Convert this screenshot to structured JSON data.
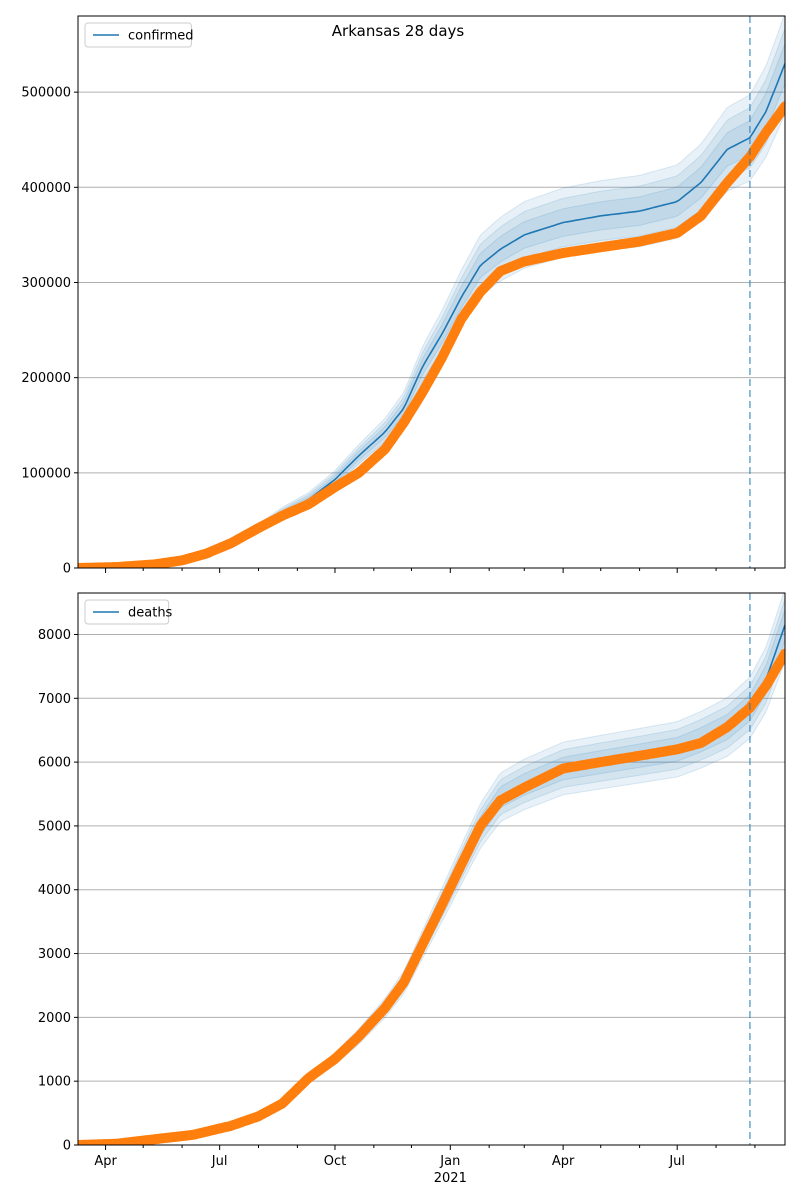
{
  "figure_title": "Arkansas 28 days",
  "colors": {
    "model": "#1f77b4",
    "observed": "#ff7f0e",
    "grid": "#b0b0b0",
    "vline": "#1f77b4"
  },
  "chart_data": [
    {
      "type": "line",
      "title": "Arkansas 28 days",
      "legend": {
        "label": "confirmed",
        "placement": "top-left"
      },
      "x_axis": {
        "type": "date",
        "range": [
          "2020-03-10",
          "2021-09-25"
        ],
        "tick_labels": []
      },
      "ylim": [
        0,
        580000
      ],
      "yticks": [
        0,
        100000,
        200000,
        300000,
        400000,
        500000
      ],
      "grid": "horizontal",
      "forecast_start": "2021-08-28",
      "series": [
        {
          "name": "confirmed",
          "style": "line-with-uncertainty-bands",
          "points": [
            [
              "2020-03-10",
              0
            ],
            [
              "2020-04-10",
              1200
            ],
            [
              "2020-05-10",
              4000
            ],
            [
              "2020-06-01",
              8000
            ],
            [
              "2020-06-20",
              15000
            ],
            [
              "2020-07-10",
              26000
            ],
            [
              "2020-08-01",
              42000
            ],
            [
              "2020-08-20",
              58000
            ],
            [
              "2020-09-10",
              72000
            ],
            [
              "2020-10-01",
              93000
            ],
            [
              "2020-10-20",
              118000
            ],
            [
              "2020-11-10",
              143000
            ],
            [
              "2020-11-25",
              168000
            ],
            [
              "2020-12-10",
              212000
            ],
            [
              "2020-12-25",
              245000
            ],
            [
              "2021-01-10",
              285000
            ],
            [
              "2021-01-25",
              318000
            ],
            [
              "2021-02-10",
              335000
            ],
            [
              "2021-03-01",
              350000
            ],
            [
              "2021-04-01",
              363000
            ],
            [
              "2021-05-01",
              370000
            ],
            [
              "2021-06-01",
              375000
            ],
            [
              "2021-07-01",
              385000
            ],
            [
              "2021-07-20",
              405000
            ],
            [
              "2021-08-10",
              440000
            ],
            [
              "2021-08-28",
              452000
            ],
            [
              "2021-09-10",
              480000
            ],
            [
              "2021-09-25",
              530000
            ]
          ],
          "band_spread_fraction": [
            0.1,
            0.07,
            0.04
          ]
        },
        {
          "name": "",
          "style": "markers",
          "points": [
            [
              "2020-03-10",
              0
            ],
            [
              "2020-04-10",
              1000
            ],
            [
              "2020-05-10",
              3800
            ],
            [
              "2020-06-01",
              8000
            ],
            [
              "2020-06-20",
              15000
            ],
            [
              "2020-07-10",
              26000
            ],
            [
              "2020-08-01",
              42000
            ],
            [
              "2020-08-20",
              55000
            ],
            [
              "2020-09-10",
              67000
            ],
            [
              "2020-10-01",
              85000
            ],
            [
              "2020-10-20",
              100000
            ],
            [
              "2020-11-10",
              125000
            ],
            [
              "2020-11-25",
              153000
            ],
            [
              "2020-12-10",
              185000
            ],
            [
              "2020-12-25",
              220000
            ],
            [
              "2021-01-10",
              262000
            ],
            [
              "2021-01-25",
              290000
            ],
            [
              "2021-02-10",
              312000
            ],
            [
              "2021-03-01",
              322000
            ],
            [
              "2021-04-01",
              331000
            ],
            [
              "2021-05-01",
              337000
            ],
            [
              "2021-06-01",
              343000
            ],
            [
              "2021-07-01",
              352000
            ],
            [
              "2021-07-20",
              370000
            ],
            [
              "2021-08-10",
              405000
            ],
            [
              "2021-08-28",
              432000
            ],
            [
              "2021-09-10",
              458000
            ],
            [
              "2021-09-25",
              485000
            ]
          ]
        }
      ]
    },
    {
      "type": "line",
      "title": "",
      "legend": {
        "label": "deaths",
        "placement": "top-left"
      },
      "x_axis": {
        "type": "date",
        "range": [
          "2020-03-10",
          "2021-09-25"
        ],
        "tick_labels": [
          {
            "date": "2020-04-01",
            "label": "Apr"
          },
          {
            "date": "2020-07-01",
            "label": "Jul"
          },
          {
            "date": "2020-10-01",
            "label": "Oct"
          },
          {
            "date": "2021-01-01",
            "label": "Jan",
            "sublabel": "2021"
          },
          {
            "date": "2021-04-01",
            "label": "Apr"
          },
          {
            "date": "2021-07-01",
            "label": "Jul"
          }
        ]
      },
      "ylim": [
        0,
        8650
      ],
      "yticks": [
        0,
        1000,
        2000,
        3000,
        4000,
        5000,
        6000,
        7000,
        8000
      ],
      "grid": "horizontal",
      "forecast_start": "2021-08-28",
      "series": [
        {
          "name": "deaths",
          "style": "line-with-uncertainty-bands",
          "points": [
            [
              "2020-03-10",
              0
            ],
            [
              "2020-04-10",
              20
            ],
            [
              "2020-05-10",
              90
            ],
            [
              "2020-06-10",
              160
            ],
            [
              "2020-07-10",
              300
            ],
            [
              "2020-08-01",
              450
            ],
            [
              "2020-08-20",
              650
            ],
            [
              "2020-09-10",
              1050
            ],
            [
              "2020-10-01",
              1350
            ],
            [
              "2020-10-20",
              1700
            ],
            [
              "2020-11-10",
              2150
            ],
            [
              "2020-11-25",
              2550
            ],
            [
              "2020-12-10",
              3150
            ],
            [
              "2020-12-25",
              3750
            ],
            [
              "2021-01-10",
              4400
            ],
            [
              "2021-01-25",
              5000
            ],
            [
              "2021-02-10",
              5450
            ],
            [
              "2021-03-01",
              5650
            ],
            [
              "2021-04-01",
              5900
            ],
            [
              "2021-05-01",
              6000
            ],
            [
              "2021-06-01",
              6100
            ],
            [
              "2021-07-01",
              6200
            ],
            [
              "2021-07-20",
              6350
            ],
            [
              "2021-08-10",
              6550
            ],
            [
              "2021-08-28",
              6850
            ],
            [
              "2021-09-10",
              7300
            ],
            [
              "2021-09-25",
              8150
            ]
          ],
          "band_spread_fraction": [
            0.07,
            0.05,
            0.03
          ]
        },
        {
          "name": "",
          "style": "markers",
          "points": [
            [
              "2020-03-10",
              0
            ],
            [
              "2020-04-10",
              20
            ],
            [
              "2020-05-10",
              90
            ],
            [
              "2020-06-10",
              160
            ],
            [
              "2020-07-10",
              300
            ],
            [
              "2020-08-01",
              450
            ],
            [
              "2020-08-20",
              650
            ],
            [
              "2020-09-10",
              1050
            ],
            [
              "2020-10-01",
              1350
            ],
            [
              "2020-10-20",
              1700
            ],
            [
              "2020-11-10",
              2150
            ],
            [
              "2020-11-25",
              2550
            ],
            [
              "2020-12-10",
              3150
            ],
            [
              "2020-12-25",
              3750
            ],
            [
              "2021-01-10",
              4400
            ],
            [
              "2021-01-25",
              5000
            ],
            [
              "2021-02-10",
              5400
            ],
            [
              "2021-03-01",
              5600
            ],
            [
              "2021-04-01",
              5900
            ],
            [
              "2021-05-01",
              6000
            ],
            [
              "2021-06-01",
              6100
            ],
            [
              "2021-07-01",
              6200
            ],
            [
              "2021-07-20",
              6300
            ],
            [
              "2021-08-10",
              6550
            ],
            [
              "2021-08-28",
              6850
            ],
            [
              "2021-09-10",
              7200
            ],
            [
              "2021-09-25",
              7700
            ]
          ]
        }
      ]
    }
  ]
}
